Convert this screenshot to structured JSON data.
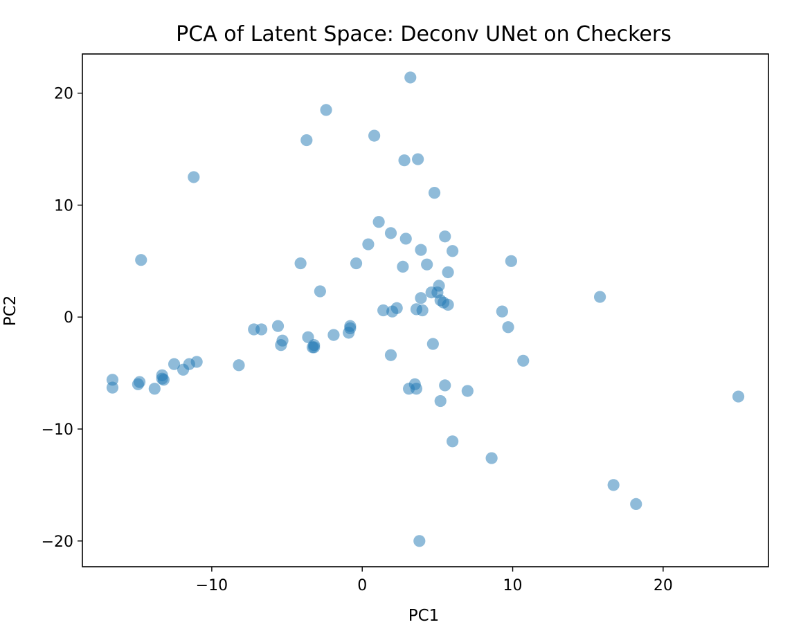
{
  "chart_data": {
    "type": "scatter",
    "title": "PCA of Latent Space: Deconv UNet on Checkers",
    "xlabel": "PC1",
    "ylabel": "PC2",
    "xlim": [
      -18.6,
      27.0
    ],
    "ylim": [
      -22.3,
      23.5
    ],
    "xticks": [
      -10,
      0,
      10,
      20
    ],
    "yticks": [
      -20,
      -10,
      0,
      10,
      20
    ],
    "xtick_labels": [
      "−10",
      "0",
      "10",
      "20"
    ],
    "ytick_labels": [
      "−20",
      "−10",
      "0",
      "10",
      "20"
    ],
    "grid": false,
    "marker_color": "#1f77b4",
    "marker_alpha": 0.5,
    "points": [
      {
        "x": 3.2,
        "y": 21.4
      },
      {
        "x": -2.4,
        "y": 18.5
      },
      {
        "x": 0.8,
        "y": 16.2
      },
      {
        "x": -3.7,
        "y": 15.8
      },
      {
        "x": 2.8,
        "y": 14.0
      },
      {
        "x": 3.7,
        "y": 14.1
      },
      {
        "x": -11.2,
        "y": 12.5
      },
      {
        "x": 4.8,
        "y": 11.1
      },
      {
        "x": 1.1,
        "y": 8.5
      },
      {
        "x": 1.9,
        "y": 7.5
      },
      {
        "x": 2.9,
        "y": 7.0
      },
      {
        "x": 5.5,
        "y": 7.2
      },
      {
        "x": 0.4,
        "y": 6.5
      },
      {
        "x": 3.9,
        "y": 6.0
      },
      {
        "x": 6.0,
        "y": 5.9
      },
      {
        "x": -14.7,
        "y": 5.1
      },
      {
        "x": 9.9,
        "y": 5.0
      },
      {
        "x": -4.1,
        "y": 4.8
      },
      {
        "x": -0.4,
        "y": 4.8
      },
      {
        "x": 2.7,
        "y": 4.5
      },
      {
        "x": 4.3,
        "y": 4.7
      },
      {
        "x": 5.7,
        "y": 4.0
      },
      {
        "x": -2.8,
        "y": 2.3
      },
      {
        "x": 5.1,
        "y": 2.8
      },
      {
        "x": 4.6,
        "y": 2.2
      },
      {
        "x": 5.0,
        "y": 2.2
      },
      {
        "x": 15.8,
        "y": 1.8
      },
      {
        "x": 3.9,
        "y": 1.7
      },
      {
        "x": 5.2,
        "y": 1.5
      },
      {
        "x": 5.4,
        "y": 1.3
      },
      {
        "x": 5.7,
        "y": 1.1
      },
      {
        "x": 2.3,
        "y": 0.8
      },
      {
        "x": 3.6,
        "y": 0.7
      },
      {
        "x": 1.4,
        "y": 0.6
      },
      {
        "x": 2.0,
        "y": 0.5
      },
      {
        "x": 4.0,
        "y": 0.6
      },
      {
        "x": 9.3,
        "y": 0.5
      },
      {
        "x": -5.6,
        "y": -0.8
      },
      {
        "x": -0.8,
        "y": -0.8
      },
      {
        "x": -0.8,
        "y": -1.0
      },
      {
        "x": 9.7,
        "y": -0.9
      },
      {
        "x": -7.2,
        "y": -1.1
      },
      {
        "x": -6.7,
        "y": -1.1
      },
      {
        "x": -0.9,
        "y": -1.4
      },
      {
        "x": -1.9,
        "y": -1.6
      },
      {
        "x": -3.6,
        "y": -1.8
      },
      {
        "x": -5.3,
        "y": -2.1
      },
      {
        "x": -5.4,
        "y": -2.5
      },
      {
        "x": 4.7,
        "y": -2.4
      },
      {
        "x": -3.2,
        "y": -2.5
      },
      {
        "x": -3.3,
        "y": -2.7
      },
      {
        "x": -3.2,
        "y": -2.7
      },
      {
        "x": 1.9,
        "y": -3.4
      },
      {
        "x": 10.7,
        "y": -3.9
      },
      {
        "x": -11.0,
        "y": -4.0
      },
      {
        "x": -12.5,
        "y": -4.2
      },
      {
        "x": -11.5,
        "y": -4.2
      },
      {
        "x": -8.2,
        "y": -4.3
      },
      {
        "x": -11.9,
        "y": -4.7
      },
      {
        "x": -13.3,
        "y": -5.2
      },
      {
        "x": -13.3,
        "y": -5.5
      },
      {
        "x": -13.2,
        "y": -5.6
      },
      {
        "x": -16.6,
        "y": -5.6
      },
      {
        "x": -14.8,
        "y": -5.8
      },
      {
        "x": -14.9,
        "y": -6.0
      },
      {
        "x": 3.5,
        "y": -6.0
      },
      {
        "x": 5.5,
        "y": -6.1
      },
      {
        "x": -16.6,
        "y": -6.3
      },
      {
        "x": -13.8,
        "y": -6.4
      },
      {
        "x": 3.1,
        "y": -6.4
      },
      {
        "x": 3.6,
        "y": -6.4
      },
      {
        "x": 7.0,
        "y": -6.6
      },
      {
        "x": 25.0,
        "y": -7.1
      },
      {
        "x": 5.2,
        "y": -7.5
      },
      {
        "x": 6.0,
        "y": -11.1
      },
      {
        "x": 8.6,
        "y": -12.6
      },
      {
        "x": 16.7,
        "y": -15.0
      },
      {
        "x": 18.2,
        "y": -16.7
      },
      {
        "x": 3.8,
        "y": -20.0
      }
    ]
  }
}
